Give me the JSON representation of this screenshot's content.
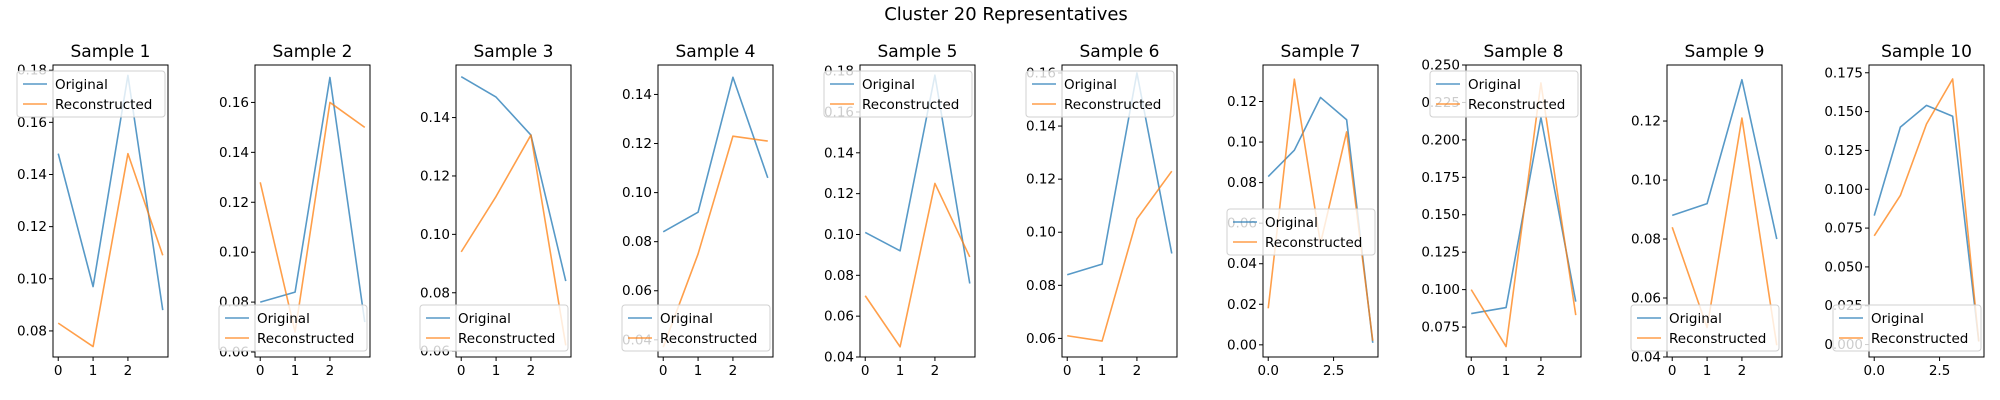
{
  "figure": {
    "title": "Cluster 20 Representatives"
  },
  "colors": {
    "original": "#1f77b4",
    "reconstructed": "#ff7f0e"
  },
  "chart_data": [
    {
      "type": "line",
      "title": "Sample 1",
      "x": [
        0,
        1,
        2,
        3
      ],
      "xlim": [
        -0.15,
        3.15
      ],
      "ylim": [
        0.07,
        0.182
      ],
      "xticks": [
        0,
        1,
        2
      ],
      "xtick_labels": [
        "0",
        "1",
        "2"
      ],
      "yticks": [
        0.08,
        0.1,
        0.12,
        0.14,
        0.16,
        0.18
      ],
      "ytick_labels": [
        "0.08",
        "0.10",
        "0.12",
        "0.14",
        "0.16",
        "0.18"
      ],
      "legend_loc": "upper-left",
      "series": [
        {
          "name": "Original",
          "values": [
            0.148,
            0.097,
            0.178,
            0.088
          ]
        },
        {
          "name": "Reconstructed",
          "values": [
            0.083,
            0.074,
            0.148,
            0.109
          ]
        }
      ]
    },
    {
      "type": "line",
      "title": "Sample 2",
      "x": [
        0,
        1,
        2,
        3
      ],
      "xlim": [
        -0.15,
        3.15
      ],
      "ylim": [
        0.058,
        0.175
      ],
      "xticks": [
        0,
        1,
        2
      ],
      "xtick_labels": [
        "0",
        "1",
        "2"
      ],
      "yticks": [
        0.06,
        0.08,
        0.1,
        0.12,
        0.14,
        0.16
      ],
      "ytick_labels": [
        "0.06",
        "0.08",
        "0.10",
        "0.12",
        "0.14",
        "0.16"
      ],
      "legend_loc": "lower-left",
      "series": [
        {
          "name": "Original",
          "values": [
            0.08,
            0.084,
            0.17,
            0.072
          ]
        },
        {
          "name": "Reconstructed",
          "values": [
            0.128,
            0.068,
            0.16,
            0.15
          ]
        }
      ]
    },
    {
      "type": "line",
      "title": "Sample 3",
      "x": [
        0,
        1,
        2,
        3
      ],
      "xlim": [
        -0.15,
        3.15
      ],
      "ylim": [
        0.058,
        0.158
      ],
      "xticks": [
        0,
        1,
        2
      ],
      "xtick_labels": [
        "0",
        "1",
        "2"
      ],
      "yticks": [
        0.06,
        0.08,
        0.1,
        0.12,
        0.14
      ],
      "ytick_labels": [
        "0.06",
        "0.08",
        "0.10",
        "0.12",
        "0.14"
      ],
      "legend_loc": "lower-left",
      "series": [
        {
          "name": "Original",
          "values": [
            0.154,
            0.147,
            0.134,
            0.084
          ]
        },
        {
          "name": "Reconstructed",
          "values": [
            0.094,
            0.113,
            0.134,
            0.062
          ]
        }
      ]
    },
    {
      "type": "line",
      "title": "Sample 4",
      "x": [
        0,
        1,
        2,
        3
      ],
      "xlim": [
        -0.15,
        3.15
      ],
      "ylim": [
        0.033,
        0.152
      ],
      "xticks": [
        0,
        1,
        2
      ],
      "xtick_labels": [
        "0",
        "1",
        "2"
      ],
      "yticks": [
        0.04,
        0.06,
        0.08,
        0.1,
        0.12,
        0.14
      ],
      "ytick_labels": [
        "0.04",
        "0.06",
        "0.08",
        "0.10",
        "0.12",
        "0.14"
      ],
      "legend_loc": "lower-left",
      "series": [
        {
          "name": "Original",
          "values": [
            0.084,
            0.092,
            0.147,
            0.106
          ]
        },
        {
          "name": "Reconstructed",
          "values": [
            0.037,
            0.075,
            0.123,
            0.121
          ]
        }
      ]
    },
    {
      "type": "line",
      "title": "Sample 5",
      "x": [
        0,
        1,
        2,
        3
      ],
      "xlim": [
        -0.15,
        3.15
      ],
      "ylim": [
        0.04,
        0.183
      ],
      "xticks": [
        0,
        1,
        2
      ],
      "xtick_labels": [
        "0",
        "1",
        "2"
      ],
      "yticks": [
        0.04,
        0.06,
        0.08,
        0.1,
        0.12,
        0.14,
        0.16,
        0.18
      ],
      "ytick_labels": [
        "0.04",
        "0.06",
        "0.08",
        "0.10",
        "0.12",
        "0.14",
        "0.16",
        "0.18"
      ],
      "legend_loc": "upper-left",
      "series": [
        {
          "name": "Original",
          "values": [
            0.101,
            0.092,
            0.178,
            0.076
          ]
        },
        {
          "name": "Reconstructed",
          "values": [
            0.07,
            0.045,
            0.125,
            0.089
          ]
        }
      ]
    },
    {
      "type": "line",
      "title": "Sample 6",
      "x": [
        0,
        1,
        2,
        3
      ],
      "xlim": [
        -0.15,
        3.15
      ],
      "ylim": [
        0.053,
        0.163
      ],
      "xticks": [
        0,
        1,
        2
      ],
      "xtick_labels": [
        "0",
        "1",
        "2"
      ],
      "yticks": [
        0.06,
        0.08,
        0.1,
        0.12,
        0.14,
        0.16
      ],
      "ytick_labels": [
        "0.06",
        "0.08",
        "0.10",
        "0.12",
        "0.14",
        "0.16"
      ],
      "legend_loc": "upper-left",
      "series": [
        {
          "name": "Original",
          "values": [
            0.084,
            0.088,
            0.16,
            0.092
          ]
        },
        {
          "name": "Reconstructed",
          "values": [
            0.061,
            0.059,
            0.105,
            0.123
          ]
        }
      ]
    },
    {
      "type": "line",
      "title": "Sample 7",
      "x": [
        0,
        1,
        2,
        3,
        4
      ],
      "xlim": [
        -0.2,
        4.2
      ],
      "ylim": [
        -0.006,
        0.138
      ],
      "xticks": [
        0,
        2.5
      ],
      "xtick_labels": [
        "0.0",
        "2.5"
      ],
      "yticks": [
        0.0,
        0.02,
        0.04,
        0.06,
        0.08,
        0.1,
        0.12
      ],
      "ytick_labels": [
        "0.00",
        "0.02",
        "0.04",
        "0.06",
        "0.08",
        "0.10",
        "0.12"
      ],
      "legend_loc": "center-left",
      "series": [
        {
          "name": "Original",
          "values": [
            0.083,
            0.096,
            0.122,
            0.111,
            0.001
          ]
        },
        {
          "name": "Reconstructed",
          "values": [
            0.018,
            0.131,
            0.05,
            0.105,
            0.002
          ]
        }
      ]
    },
    {
      "type": "line",
      "title": "Sample 8",
      "x": [
        0,
        1,
        2,
        3
      ],
      "xlim": [
        -0.15,
        3.15
      ],
      "ylim": [
        0.055,
        0.25
      ],
      "xticks": [
        0,
        1,
        2
      ],
      "xtick_labels": [
        "0",
        "1",
        "2"
      ],
      "yticks": [
        0.075,
        0.1,
        0.125,
        0.15,
        0.175,
        0.2,
        0.225,
        0.25
      ],
      "ytick_labels": [
        "0.075",
        "0.100",
        "0.125",
        "0.150",
        "0.175",
        "0.200",
        "0.225",
        "0.250"
      ],
      "legend_loc": "upper-left",
      "series": [
        {
          "name": "Original",
          "values": [
            0.084,
            0.088,
            0.215,
            0.092
          ]
        },
        {
          "name": "Reconstructed",
          "values": [
            0.1,
            0.062,
            0.238,
            0.083
          ]
        }
      ]
    },
    {
      "type": "line",
      "title": "Sample 9",
      "x": [
        0,
        1,
        2,
        3
      ],
      "xlim": [
        -0.15,
        3.15
      ],
      "ylim": [
        0.04,
        0.139
      ],
      "xticks": [
        0,
        1,
        2
      ],
      "xtick_labels": [
        "0",
        "1",
        "2"
      ],
      "yticks": [
        0.04,
        0.06,
        0.08,
        0.1,
        0.12
      ],
      "ytick_labels": [
        "0.04",
        "0.06",
        "0.08",
        "0.10",
        "0.12"
      ],
      "legend_loc": "lower-left",
      "series": [
        {
          "name": "Original",
          "values": [
            0.088,
            0.092,
            0.134,
            0.08
          ]
        },
        {
          "name": "Reconstructed",
          "values": [
            0.084,
            0.05,
            0.121,
            0.044
          ]
        }
      ]
    },
    {
      "type": "line",
      "title": "Sample 10",
      "x": [
        0,
        1,
        2,
        3,
        4
      ],
      "xlim": [
        -0.2,
        4.2
      ],
      "ylim": [
        -0.008,
        0.18
      ],
      "xticks": [
        0,
        2.5
      ],
      "xtick_labels": [
        "0.0",
        "2.5"
      ],
      "yticks": [
        0.0,
        0.025,
        0.05,
        0.075,
        0.1,
        0.125,
        0.15,
        0.175
      ],
      "ytick_labels": [
        "0.000",
        "0.025",
        "0.050",
        "0.075",
        "0.100",
        "0.125",
        "0.150",
        "0.175"
      ],
      "legend_loc": "lower-left",
      "series": [
        {
          "name": "Original",
          "values": [
            0.083,
            0.14,
            0.154,
            0.147,
            0.002
          ]
        },
        {
          "name": "Reconstructed",
          "values": [
            0.07,
            0.096,
            0.142,
            0.171,
            0.002
          ]
        }
      ]
    }
  ]
}
